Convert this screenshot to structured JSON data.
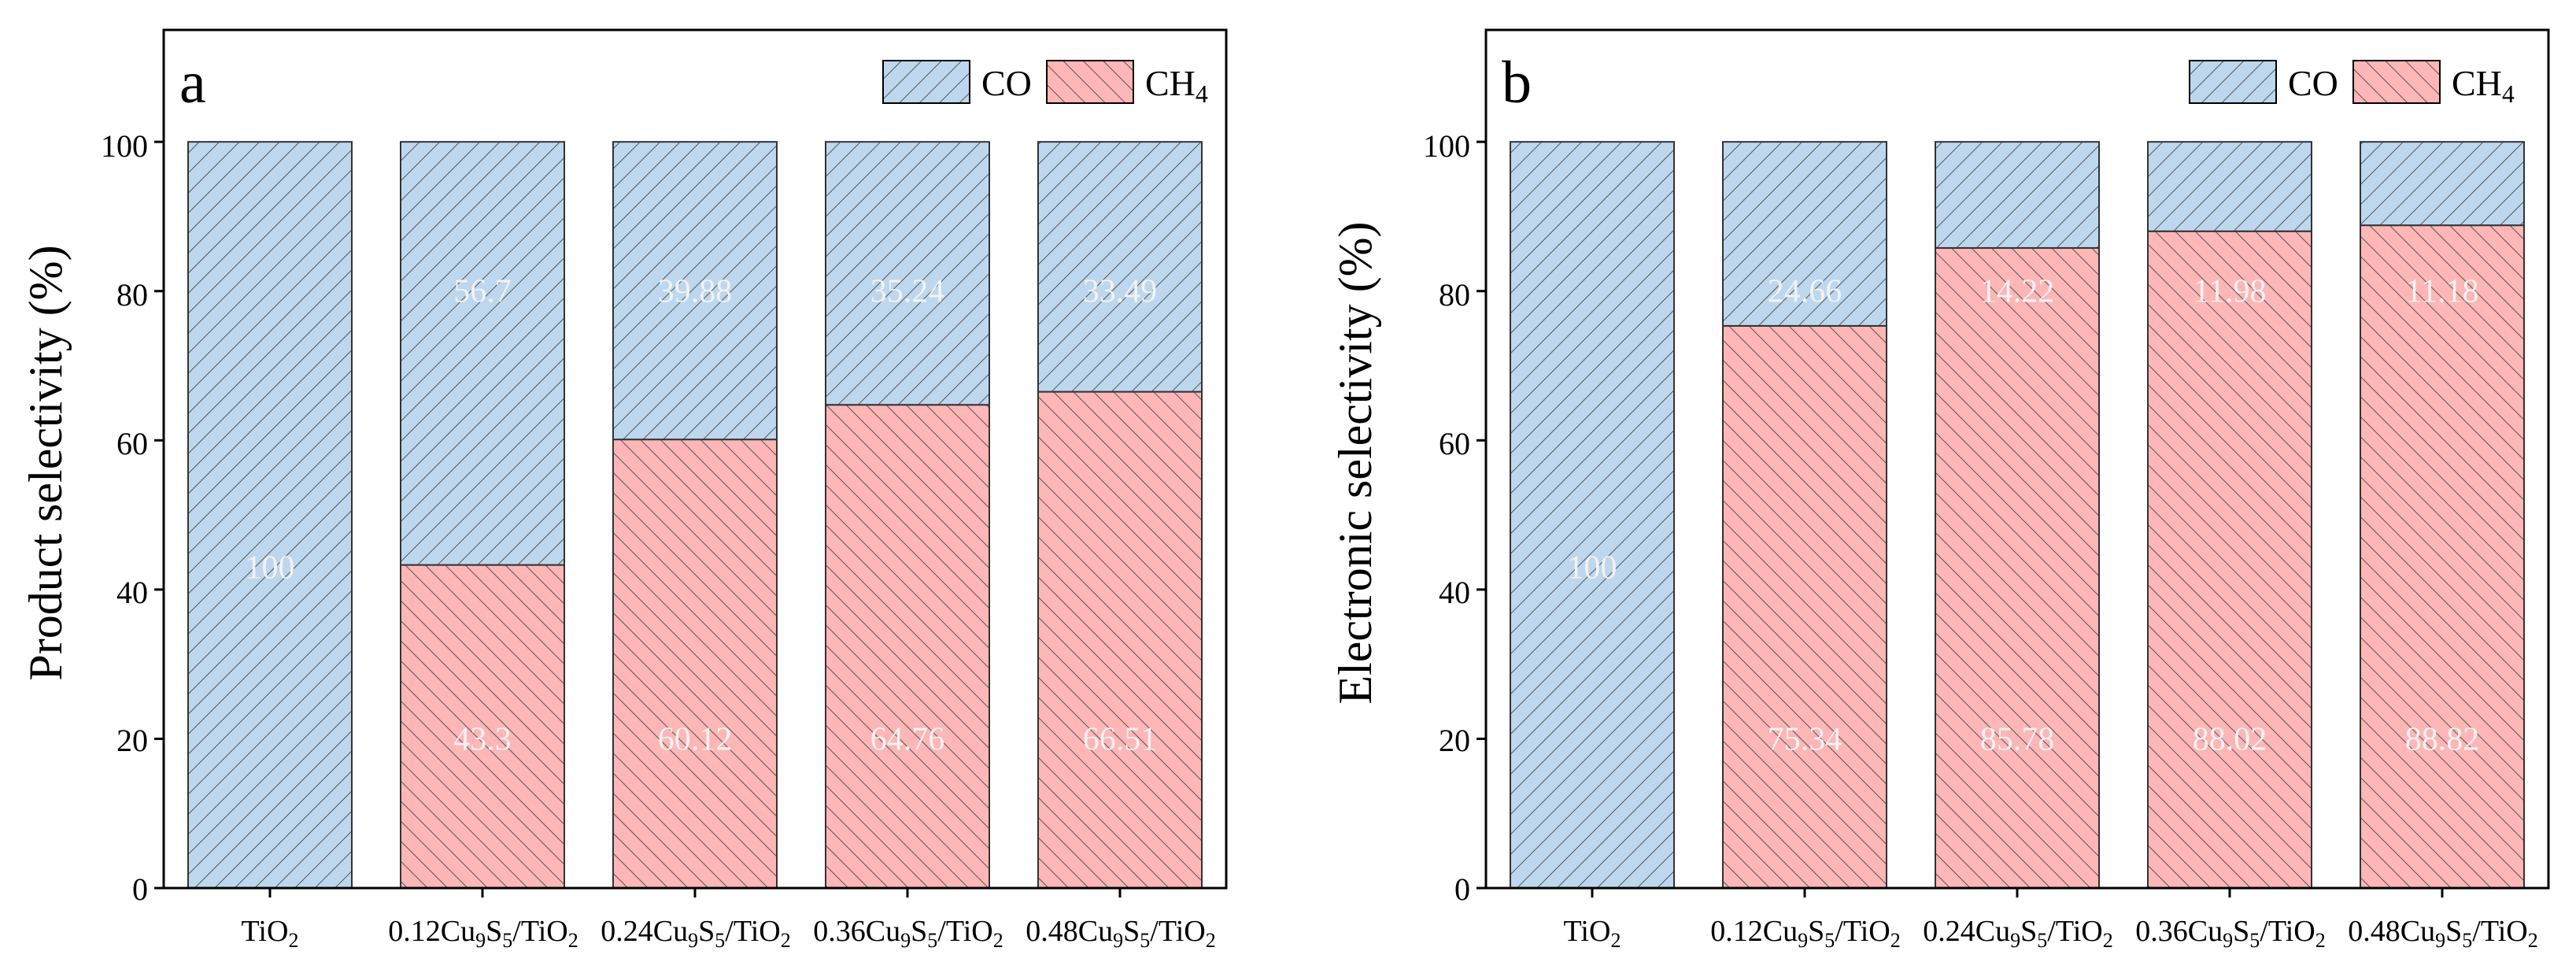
{
  "figure": {
    "colors": {
      "co_fill": "#bdd7ee",
      "ch4_fill": "#ffb6b6",
      "hatch": "#555555",
      "frame": "#000000",
      "value_label": "#f2f2f2"
    }
  },
  "chart_data": [
    {
      "type": "bar",
      "stacked": true,
      "panel_label": "a",
      "title": "",
      "xlabel": "",
      "ylabel": "Product selectivity (%)",
      "ylim": [
        0,
        115
      ],
      "yticks": [
        0,
        20,
        40,
        60,
        80,
        100
      ],
      "ytick_labels": [
        "0",
        "20",
        "40",
        "60",
        "80",
        "100"
      ],
      "categories": [
        {
          "pre": "TiO",
          "s1": "2",
          "mid1": "",
          "s2": "",
          "mid2": "",
          "s3": ""
        },
        {
          "pre": "0.12Cu",
          "s1": "9",
          "mid1": "S",
          "s2": "5",
          "mid2": "/TiO",
          "s3": "2"
        },
        {
          "pre": "0.24Cu",
          "s1": "9",
          "mid1": "S",
          "s2": "5",
          "mid2": "/TiO",
          "s3": "2"
        },
        {
          "pre": "0.36Cu",
          "s1": "9",
          "mid1": "S",
          "s2": "5",
          "mid2": "/TiO",
          "s3": "2"
        },
        {
          "pre": "0.48Cu",
          "s1": "9",
          "mid1": "S",
          "s2": "5",
          "mid2": "/TiO",
          "s3": "2"
        }
      ],
      "legend": {
        "position": "top-right",
        "entries": [
          {
            "key": "ch4",
            "text": "CH",
            "sub": "4"
          },
          {
            "key": "co",
            "text": "CO",
            "sub": ""
          }
        ]
      },
      "series": [
        {
          "name": "CH4",
          "key": "ch4",
          "values": [
            0,
            43.3,
            60.12,
            64.76,
            66.51
          ],
          "labels": [
            "",
            "43.3",
            "60.12",
            "64.76",
            "66.51"
          ]
        },
        {
          "name": "CO",
          "key": "co",
          "values": [
            100,
            56.7,
            39.88,
            35.24,
            33.49
          ],
          "labels": [
            "100",
            "56.7",
            "39.88",
            "35.24",
            "33.49"
          ]
        }
      ]
    },
    {
      "type": "bar",
      "stacked": true,
      "panel_label": "b",
      "title": "",
      "xlabel": "",
      "ylabel": "Electronic selectivity (%)",
      "ylim": [
        0,
        115
      ],
      "yticks": [
        0,
        20,
        40,
        60,
        80,
        100
      ],
      "ytick_labels": [
        "0",
        "20",
        "40",
        "60",
        "80",
        "100"
      ],
      "categories": [
        {
          "pre": "TiO",
          "s1": "2",
          "mid1": "",
          "s2": "",
          "mid2": "",
          "s3": ""
        },
        {
          "pre": "0.12Cu",
          "s1": "9",
          "mid1": "S",
          "s2": "5",
          "mid2": "/TiO",
          "s3": "2"
        },
        {
          "pre": "0.24Cu",
          "s1": "9",
          "mid1": "S",
          "s2": "5",
          "mid2": "/TiO",
          "s3": "2"
        },
        {
          "pre": "0.36Cu",
          "s1": "9",
          "mid1": "S",
          "s2": "5",
          "mid2": "/TiO",
          "s3": "2"
        },
        {
          "pre": "0.48Cu",
          "s1": "9",
          "mid1": "S",
          "s2": "5",
          "mid2": "/TiO",
          "s3": "2"
        }
      ],
      "legend": {
        "position": "top-right",
        "entries": [
          {
            "key": "ch4",
            "text": "CH",
            "sub": "4"
          },
          {
            "key": "co",
            "text": "CO",
            "sub": ""
          }
        ]
      },
      "series": [
        {
          "name": "CH4",
          "key": "ch4",
          "values": [
            0,
            75.34,
            85.78,
            88.02,
            88.82
          ],
          "labels": [
            "",
            "75.34",
            "85.78",
            "88.02",
            "88.82"
          ]
        },
        {
          "name": "CO",
          "key": "co",
          "values": [
            100,
            24.66,
            14.22,
            11.98,
            11.18
          ],
          "labels": [
            "100",
            "24.66",
            "14.22",
            "11.98",
            "11.18"
          ]
        }
      ]
    }
  ]
}
